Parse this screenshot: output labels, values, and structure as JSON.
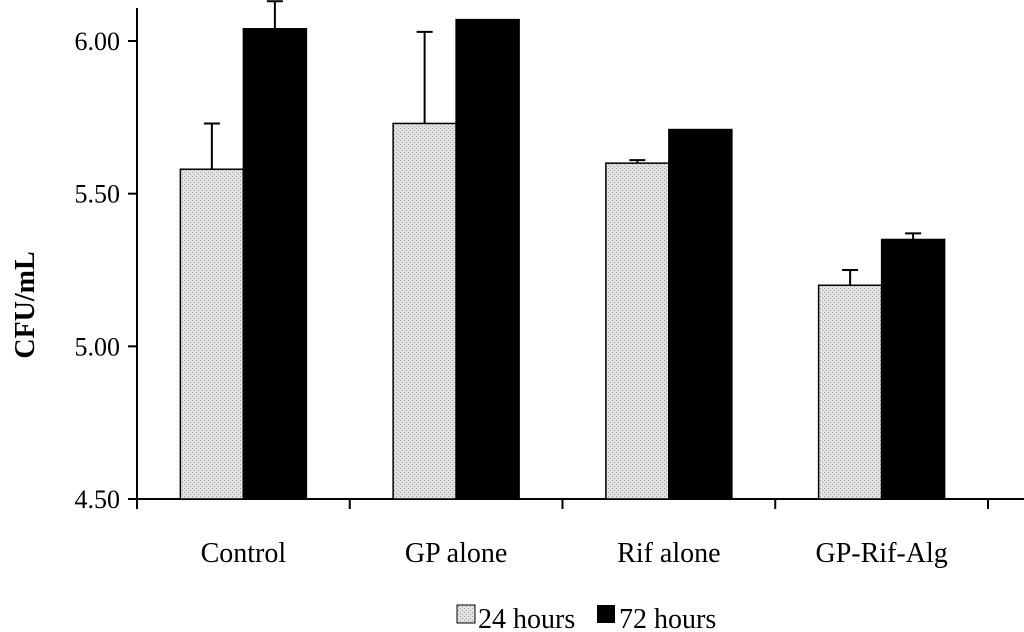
{
  "chart_data": {
    "type": "bar",
    "title": "",
    "xlabel": "",
    "ylabel": "CFU/mL",
    "ylim": [
      4.5,
      6.1
    ],
    "yticks": [
      "4.50",
      "5.00",
      "5.50",
      "6.00"
    ],
    "categories": [
      "Control",
      "GP alone",
      "Rif alone",
      "GP-Rif-Alg"
    ],
    "series": [
      {
        "name": "24 hours",
        "color": "#d3d3d3",
        "pattern": "stipple",
        "values": [
          5.58,
          5.73,
          5.6,
          5.2
        ],
        "errors": [
          0.15,
          0.3,
          0.01,
          0.05
        ]
      },
      {
        "name": "72 hours",
        "color": "#000000",
        "pattern": "solid",
        "values": [
          6.04,
          6.07,
          5.71,
          5.35
        ],
        "errors": [
          0.09,
          0.0,
          0.0,
          0.02
        ]
      }
    ],
    "legend": {
      "position": "bottom",
      "labels": [
        "24 hours",
        "72 hours"
      ]
    },
    "grid": false
  }
}
